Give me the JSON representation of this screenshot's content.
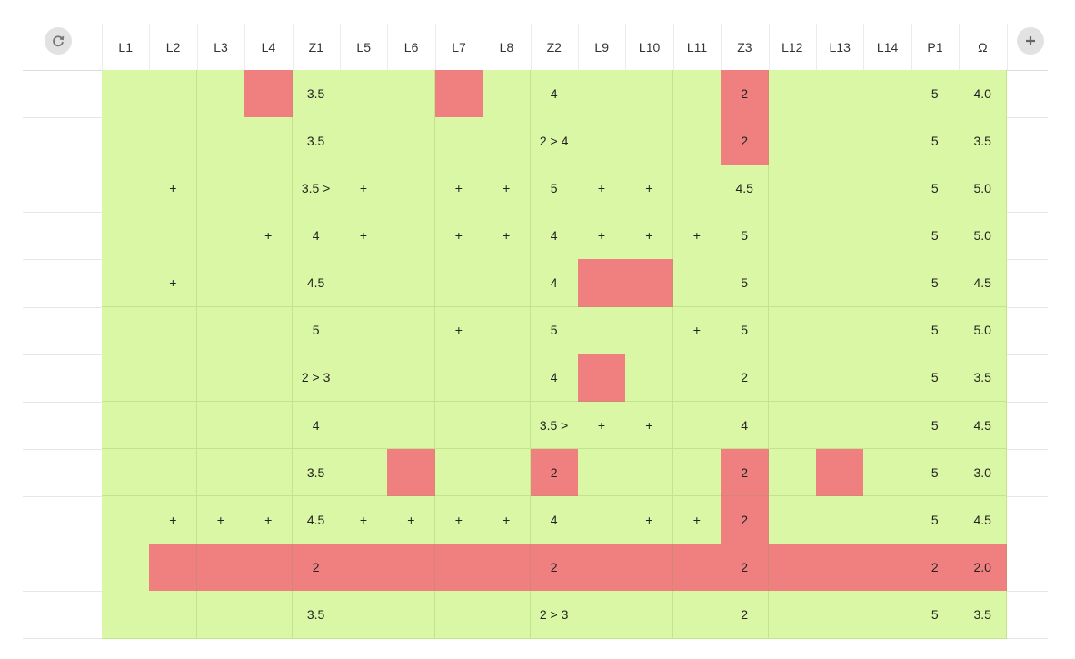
{
  "colors": {
    "pass": "#d9f7a5",
    "fail": "#f08080",
    "header_text": "#333333"
  },
  "toolbar": {
    "refresh_icon": "refresh-icon",
    "add_icon": "plus-icon"
  },
  "columns": [
    "L1",
    "L2",
    "L3",
    "L4",
    "Z1",
    "L5",
    "L6",
    "L7",
    "L8",
    "Z2",
    "L9",
    "L10",
    "L11",
    "Z3",
    "L12",
    "L13",
    "L14",
    "P1",
    "Ω"
  ],
  "rows": [
    {
      "values": [
        "",
        "",
        "",
        "",
        "3.5",
        "",
        "",
        "",
        "",
        "4",
        "",
        "",
        "",
        "2",
        "",
        "",
        "",
        "5",
        "4.0"
      ],
      "fail": [
        3,
        7,
        13
      ]
    },
    {
      "values": [
        "",
        "",
        "",
        "",
        "3.5",
        "",
        "",
        "",
        "",
        "2 > 4",
        "",
        "",
        "",
        "2",
        "",
        "",
        "",
        "5",
        "3.5"
      ],
      "fail": [
        13
      ]
    },
    {
      "values": [
        "",
        "+",
        "",
        "",
        "3.5 >",
        "+",
        "",
        "+",
        "+",
        "5",
        "+",
        "+",
        "",
        "4.5",
        "",
        "",
        "",
        "5",
        "5.0"
      ],
      "fail": []
    },
    {
      "values": [
        "",
        "",
        "",
        "+",
        "4",
        "+",
        "",
        "+",
        "+",
        "4",
        "+",
        "+",
        "+",
        "5",
        "",
        "",
        "",
        "5",
        "5.0"
      ],
      "fail": []
    },
    {
      "values": [
        "",
        "+",
        "",
        "",
        "4.5",
        "",
        "",
        "",
        "",
        "4",
        "",
        "",
        "",
        "5",
        "",
        "",
        "",
        "5",
        "4.5"
      ],
      "fail": [
        10,
        11
      ]
    },
    {
      "values": [
        "",
        "",
        "",
        "",
        "5",
        "",
        "",
        "+",
        "",
        "5",
        "",
        "",
        "+",
        "5",
        "",
        "",
        "",
        "5",
        "5.0"
      ],
      "fail": []
    },
    {
      "values": [
        "",
        "",
        "",
        "",
        "2 > 3",
        "",
        "",
        "",
        "",
        "4",
        "",
        "",
        "",
        "2",
        "",
        "",
        "",
        "5",
        "3.5"
      ],
      "fail": [
        10
      ]
    },
    {
      "values": [
        "",
        "",
        "",
        "",
        "4",
        "",
        "",
        "",
        "",
        "3.5 >",
        "+",
        "+",
        "",
        "4",
        "",
        "",
        "",
        "5",
        "4.5"
      ],
      "fail": []
    },
    {
      "values": [
        "",
        "",
        "",
        "",
        "3.5",
        "",
        "",
        "",
        "",
        "2",
        "",
        "",
        "",
        "2",
        "",
        "",
        "",
        "5",
        "3.0"
      ],
      "fail": [
        6,
        9,
        13,
        15
      ]
    },
    {
      "values": [
        "",
        "+",
        "+",
        "+",
        "4.5",
        "+",
        "+",
        "+",
        "+",
        "4",
        "",
        "+",
        "+",
        "2",
        "",
        "",
        "",
        "5",
        "4.5"
      ],
      "fail": [
        13
      ]
    },
    {
      "values": [
        "",
        "",
        "",
        "",
        "2",
        "",
        "",
        "",
        "",
        "2",
        "",
        "",
        "",
        "2",
        "",
        "",
        "",
        "2",
        "2.0"
      ],
      "fail": [
        1,
        2,
        3,
        4,
        5,
        6,
        7,
        8,
        9,
        10,
        11,
        12,
        13,
        14,
        15,
        16,
        17,
        18
      ]
    },
    {
      "values": [
        "",
        "",
        "",
        "",
        "3.5",
        "",
        "",
        "",
        "",
        "2 > 3",
        "",
        "",
        "",
        "2",
        "",
        "",
        "",
        "5",
        "3.5"
      ],
      "fail": []
    }
  ]
}
